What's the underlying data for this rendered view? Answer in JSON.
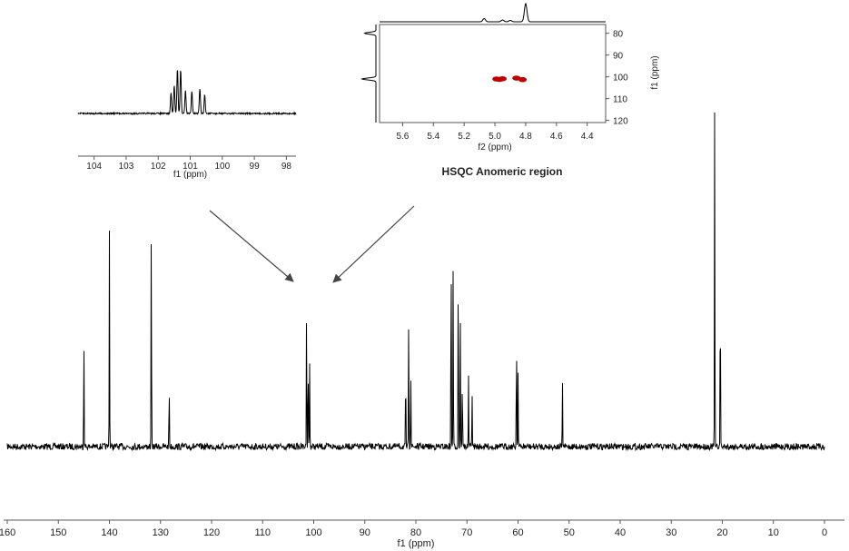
{
  "chart_data": [
    {
      "type": "line",
      "name_role": "main-13C-spectrum",
      "xlabel": "f1 (ppm)",
      "xlim": [
        160,
        0
      ],
      "xticks": [
        160,
        150,
        140,
        130,
        120,
        110,
        100,
        90,
        80,
        70,
        60,
        50,
        40,
        30,
        20,
        10,
        0
      ],
      "ylim": [
        0,
        1
      ],
      "peaks": [
        {
          "ppm": 145.0,
          "h": 0.48
        },
        {
          "ppm": 140.0,
          "h": 0.92
        },
        {
          "ppm": 131.8,
          "h": 0.98
        },
        {
          "ppm": 128.3,
          "h": 0.28
        },
        {
          "ppm": 101.4,
          "h": 0.62
        },
        {
          "ppm": 101.1,
          "h": 0.38
        },
        {
          "ppm": 100.8,
          "h": 0.36
        },
        {
          "ppm": 82.0,
          "h": 0.33
        },
        {
          "ppm": 81.4,
          "h": 0.58
        },
        {
          "ppm": 81.0,
          "h": 0.33
        },
        {
          "ppm": 73.1,
          "h": 0.93
        },
        {
          "ppm": 72.7,
          "h": 0.78
        },
        {
          "ppm": 71.7,
          "h": 0.82
        },
        {
          "ppm": 71.3,
          "h": 0.55
        },
        {
          "ppm": 70.9,
          "h": 0.32
        },
        {
          "ppm": 69.7,
          "h": 0.3
        },
        {
          "ppm": 69.0,
          "h": 0.25
        },
        {
          "ppm": 60.3,
          "h": 0.51
        },
        {
          "ppm": 60.0,
          "h": 0.32
        },
        {
          "ppm": 51.3,
          "h": 0.27
        },
        {
          "ppm": 21.5,
          "h": 1.47
        },
        {
          "ppm": 20.4,
          "h": 0.72
        }
      ]
    },
    {
      "type": "line",
      "name_role": "anomeric-expansion",
      "xlabel": "f1 (ppm)",
      "xlim": [
        104.5,
        97.7
      ],
      "xticks": [
        104,
        103,
        102,
        101,
        100,
        99,
        98
      ],
      "peaks": [
        {
          "ppm": 101.6,
          "h": 0.45
        },
        {
          "ppm": 101.5,
          "h": 0.62
        },
        {
          "ppm": 101.4,
          "h": 1.0
        },
        {
          "ppm": 101.3,
          "h": 0.98
        },
        {
          "ppm": 101.15,
          "h": 0.52
        },
        {
          "ppm": 100.95,
          "h": 0.5
        },
        {
          "ppm": 100.7,
          "h": 0.55
        },
        {
          "ppm": 100.55,
          "h": 0.42
        }
      ]
    },
    {
      "type": "scatter",
      "name_role": "hsqc-anomeric",
      "title": "HSQC Anomeric region",
      "xlabel": "f2 (ppm)",
      "ylabel": "f1 (ppm)",
      "xlim": [
        5.75,
        4.28
      ],
      "ylim": [
        76,
        121
      ],
      "xticks": [
        5.6,
        5.4,
        5.2,
        5.0,
        4.8,
        4.6,
        4.4
      ],
      "yticks": [
        80,
        90,
        100,
        110,
        120
      ],
      "cross_peaks": [
        {
          "f2": 4.99,
          "f1": 101.0
        },
        {
          "f2": 4.97,
          "f1": 101.2
        },
        {
          "f2": 4.95,
          "f1": 100.9
        },
        {
          "f2": 4.86,
          "f1": 100.6
        },
        {
          "f2": 4.82,
          "f1": 101.3
        }
      ],
      "peak_color": "#c00000",
      "proton_projection_peaks": [
        {
          "ppm": 5.07,
          "h": 0.18
        },
        {
          "ppm": 4.95,
          "h": 0.1
        },
        {
          "ppm": 4.9,
          "h": 0.08
        },
        {
          "ppm": 4.8,
          "h": 1.0
        }
      ],
      "carbon_projection_peaks": [
        {
          "ppm": 80.0,
          "h": 0.7
        },
        {
          "ppm": 101.0,
          "h": 0.85
        }
      ]
    }
  ]
}
